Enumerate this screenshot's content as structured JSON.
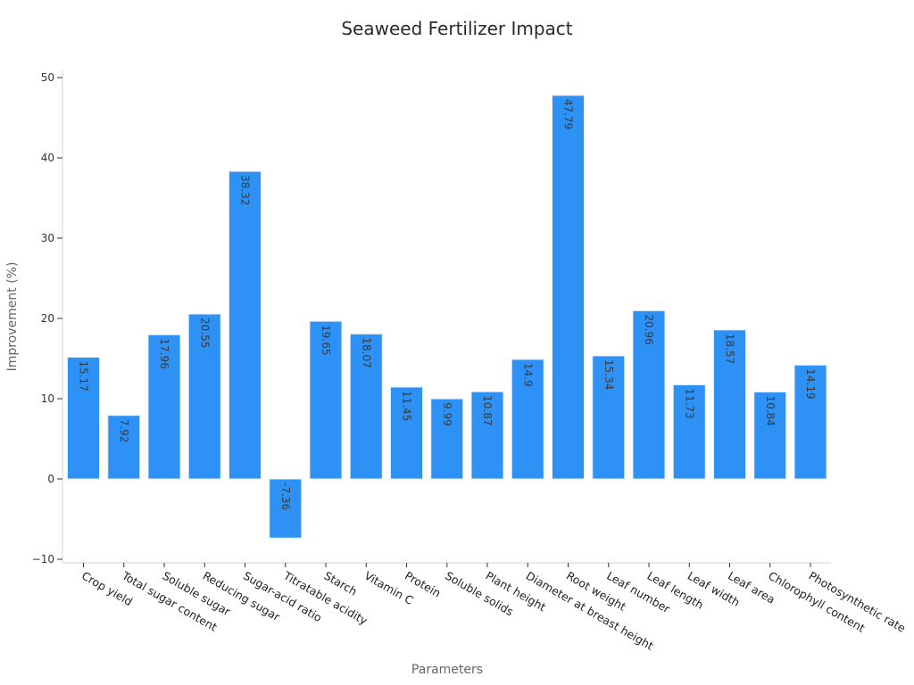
{
  "chart_data": {
    "type": "bar",
    "title": "Seaweed Fertilizer Impact",
    "xlabel": "Parameters",
    "ylabel": "Improvement (%)",
    "ylim": [
      -10,
      50
    ],
    "yticks": [
      -10,
      0,
      10,
      20,
      30,
      40,
      50
    ],
    "categories": [
      "Crop yield",
      "Total sugar content",
      "Soluble sugar",
      "Reducing sugar",
      "Sugar-acid ratio",
      "Titratable acidity",
      "Starch",
      "Vitamin C",
      "Protein",
      "Soluble solids",
      "Plant height",
      "Diameter at breast height",
      "Root weight",
      "Leaf number",
      "Leaf length",
      "Leaf width",
      "Leaf area",
      "Chlorophyll content",
      "Photosynthetic rate"
    ],
    "values": [
      15.17,
      7.92,
      17.96,
      20.55,
      38.32,
      -7.36,
      19.65,
      18.07,
      11.45,
      9.99,
      10.87,
      14.9,
      47.79,
      15.34,
      20.96,
      11.73,
      18.57,
      10.84,
      14.19
    ],
    "data_labels": [
      "15.17",
      "7.92",
      "17.96",
      "20.55",
      "38.32",
      "-7.36",
      "19.65",
      "18.07",
      "11.45",
      "9.99",
      "10.87",
      "14.9",
      "47.79",
      "15.34",
      "20.96",
      "11.73",
      "18.57",
      "10.84",
      "14.19"
    ],
    "bar_color": "#2d91f5",
    "grid": false,
    "legend": "none"
  }
}
